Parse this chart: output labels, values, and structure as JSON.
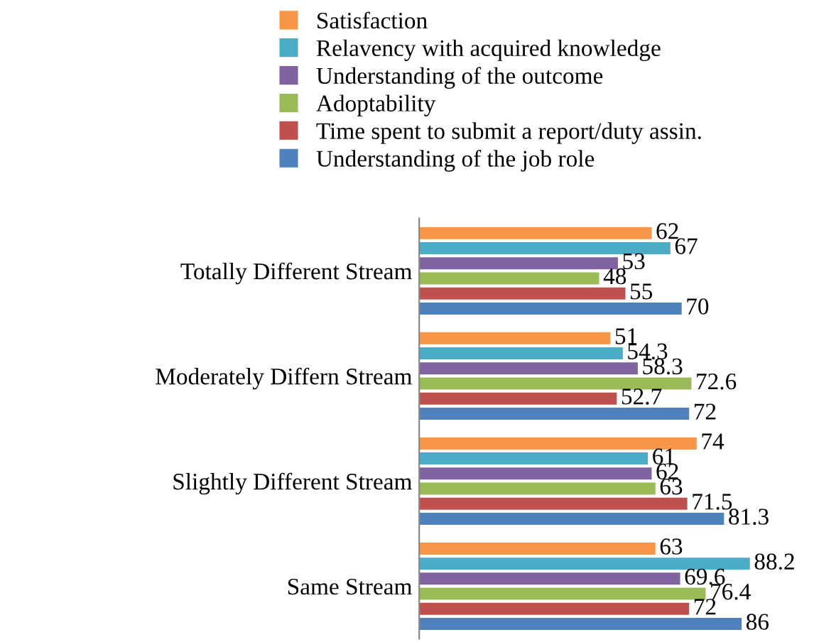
{
  "chart_data": {
    "type": "bar",
    "orientation": "horizontal",
    "categories": [
      "Totally Different Stream",
      "Moderately Differn Stream",
      "Slightly Different Stream",
      "Same Stream"
    ],
    "series": [
      {
        "name": "Satisfaction",
        "color": "#f79646",
        "values": [
          62,
          51,
          74,
          63
        ]
      },
      {
        "name": "Relavency with acquired knowledge",
        "color": "#4bacc6",
        "values": [
          67,
          54.3,
          61,
          88.2
        ]
      },
      {
        "name": "Understanding of the outcome",
        "color": "#8064a2",
        "values": [
          53,
          58.3,
          62,
          69.6
        ]
      },
      {
        "name": "Adoptability",
        "color": "#9bbb59",
        "values": [
          48,
          72.6,
          63,
          76.4
        ]
      },
      {
        "name": "Time spent to submit a report/duty assin.",
        "color": "#c0504d",
        "values": [
          55,
          52.7,
          71.5,
          72
        ]
      },
      {
        "name": "Understanding of the job role",
        "color": "#4f81bd",
        "values": [
          70,
          72,
          81.3,
          86
        ]
      }
    ],
    "tick_labels": "y",
    "data_labels": true,
    "legend": "top",
    "grid": false
  }
}
